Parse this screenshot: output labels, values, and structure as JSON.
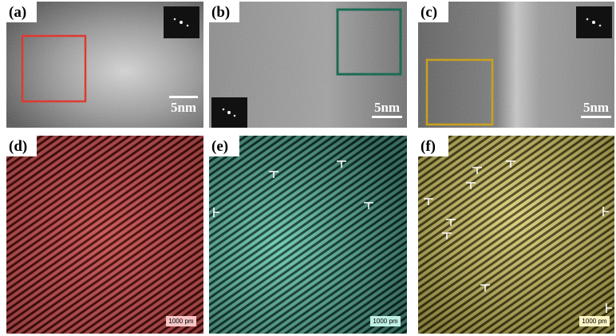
{
  "panels": [
    {
      "label": "(a)",
      "scale_bar": "5nm"
    },
    {
      "label": "(b)",
      "scale_bar": "5nm"
    },
    {
      "label": "(c)",
      "scale_bar": "5nm"
    },
    {
      "label": "(d)",
      "scale_bar": "1000 pm"
    },
    {
      "label": "(e)",
      "scale_bar": "1000 pm"
    },
    {
      "label": "(f)",
      "scale_bar": "1000 pm"
    }
  ]
}
